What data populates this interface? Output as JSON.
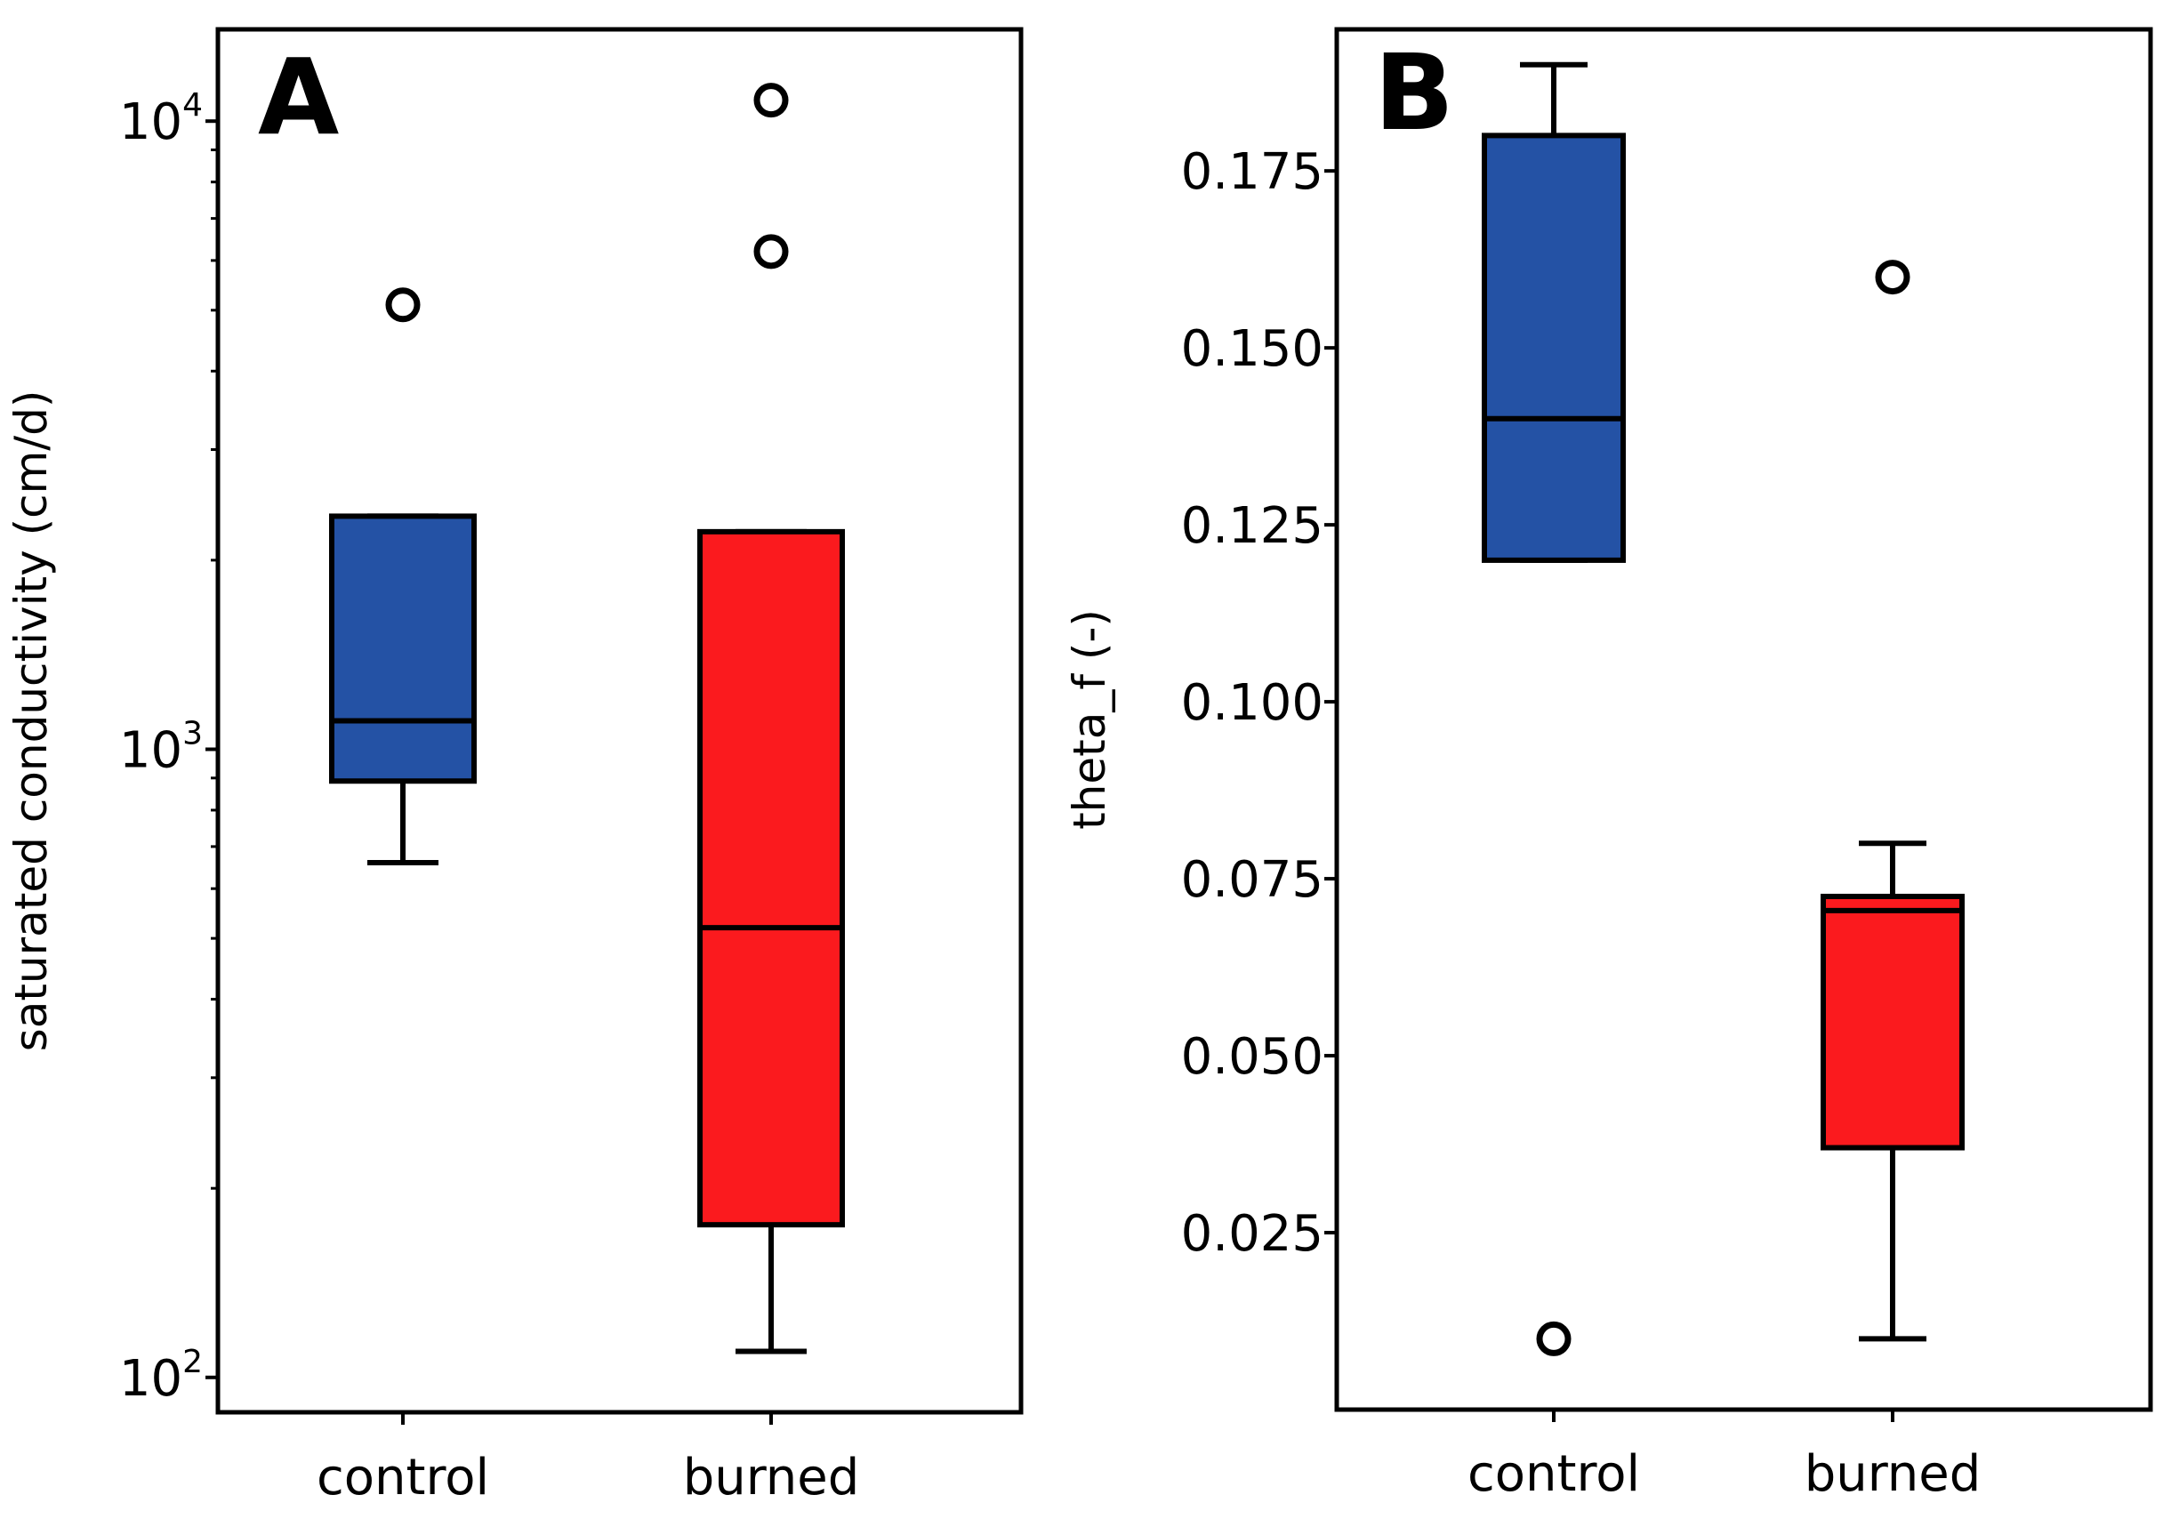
{
  "chart_data": [
    {
      "panel": "A",
      "type": "box",
      "yscale": "log",
      "ylim": [
        88,
        14000
      ],
      "ylabel": "saturated conductivity (cm/d)",
      "categories": [
        "control",
        "burned"
      ],
      "yticks": [
        {
          "value": 100,
          "base": "10",
          "exp": "2"
        },
        {
          "value": 1000,
          "base": "10",
          "exp": "3"
        },
        {
          "value": 10000,
          "base": "10",
          "exp": "4"
        }
      ],
      "minor_ticks": [
        200,
        300,
        400,
        500,
        600,
        700,
        800,
        900,
        2000,
        3000,
        4000,
        5000,
        6000,
        7000,
        8000,
        9000
      ],
      "boxes": [
        {
          "category": "control",
          "color": "#2452a5",
          "whislo": 660,
          "q1": 890,
          "median": 1110,
          "q3": 2350,
          "whishi": 2350,
          "fliers": [
            5100
          ]
        },
        {
          "category": "burned",
          "color": "#fb1a1e",
          "whislo": 110,
          "q1": 175,
          "median": 520,
          "q3": 2220,
          "whishi": 2220,
          "fliers": [
            6200,
            10800
          ]
        }
      ]
    },
    {
      "panel": "B",
      "type": "box",
      "yscale": "linear",
      "ylim": [
        0.0,
        0.195
      ],
      "ylabel": "theta_f (-)",
      "categories": [
        "control",
        "burned"
      ],
      "yticks": [
        {
          "value": 0.025,
          "label": "0.025"
        },
        {
          "value": 0.05,
          "label": "0.050"
        },
        {
          "value": 0.075,
          "label": "0.075"
        },
        {
          "value": 0.1,
          "label": "0.100"
        },
        {
          "value": 0.125,
          "label": "0.125"
        },
        {
          "value": 0.15,
          "label": "0.150"
        },
        {
          "value": 0.175,
          "label": "0.175"
        }
      ],
      "boxes": [
        {
          "category": "control",
          "color": "#2452a5",
          "whislo": 0.12,
          "q1": 0.12,
          "median": 0.14,
          "q3": 0.18,
          "whishi": 0.19,
          "fliers": [
            0.01
          ]
        },
        {
          "category": "burned",
          "color": "#fb1a1e",
          "whislo": 0.01,
          "q1": 0.037,
          "median": 0.0705,
          "q3": 0.0725,
          "whishi": 0.08,
          "fliers": [
            0.16
          ]
        }
      ]
    }
  ]
}
